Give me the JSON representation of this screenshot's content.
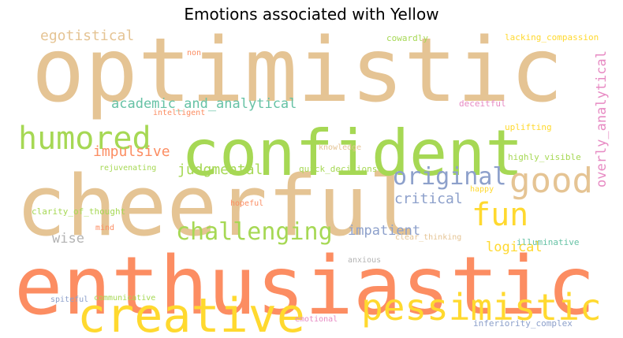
{
  "chart_data": {
    "type": "wordcloud",
    "title": "Emotions associated with Yellow",
    "palette": {
      "tan": "#e5c494",
      "green": "#a6d854",
      "orange": "#fc8d62",
      "yellow": "#ffd92f",
      "blue": "#8da0cb",
      "teal": "#66c2a5",
      "pink": "#e78ac3",
      "gray": "#b3b3b3"
    },
    "words": [
      {
        "text": "optimistic",
        "color": "#e5c494"
      },
      {
        "text": "cheerful",
        "color": "#e5c494"
      },
      {
        "text": "enthusiastic",
        "color": "#fc8d62"
      },
      {
        "text": "confident",
        "color": "#a6d854"
      },
      {
        "text": "creative",
        "color": "#ffd92f"
      },
      {
        "text": "pessimistic",
        "color": "#ffd92f"
      },
      {
        "text": "humored",
        "color": "#a6d854"
      },
      {
        "text": "good",
        "color": "#e5c494"
      },
      {
        "text": "original",
        "color": "#8da0cb"
      },
      {
        "text": "fun",
        "color": "#ffd92f"
      },
      {
        "text": "challenging",
        "color": "#a6d854"
      },
      {
        "text": "academic_and_analytical",
        "color": "#66c2a5"
      },
      {
        "text": "egotistical",
        "color": "#e5c494"
      },
      {
        "text": "overly_analytical",
        "color": "#e78ac3"
      },
      {
        "text": "impulsive",
        "color": "#fc8d62"
      },
      {
        "text": "judgmental",
        "color": "#a6d854"
      },
      {
        "text": "critical",
        "color": "#8da0cb"
      },
      {
        "text": "impatient",
        "color": "#8da0cb"
      },
      {
        "text": "logical",
        "color": "#ffd92f"
      },
      {
        "text": "wise",
        "color": "#b3b3b3"
      },
      {
        "text": "cowardly",
        "color": "#a6d854"
      },
      {
        "text": "lacking_compassion",
        "color": "#ffd92f"
      },
      {
        "text": "non",
        "color": "#fc8d62"
      },
      {
        "text": "intelligent",
        "color": "#fc8d62"
      },
      {
        "text": "deceitful",
        "color": "#e78ac3"
      },
      {
        "text": "uplifting",
        "color": "#ffd92f"
      },
      {
        "text": "rejuvenating",
        "color": "#a6d854"
      },
      {
        "text": "knowledge",
        "color": "#e5c494"
      },
      {
        "text": "highly_visible",
        "color": "#a6d854"
      },
      {
        "text": "quick_decisions",
        "color": "#a6d854"
      },
      {
        "text": "happy",
        "color": "#ffd92f"
      },
      {
        "text": "hopeful",
        "color": "#fc8d62"
      },
      {
        "text": "clarity_of_thought",
        "color": "#a6d854"
      },
      {
        "text": "mind",
        "color": "#fc8d62"
      },
      {
        "text": "clear_thinking",
        "color": "#e5c494"
      },
      {
        "text": "illuminative",
        "color": "#66c2a5"
      },
      {
        "text": "anxious",
        "color": "#b3b3b3"
      },
      {
        "text": "spiteful",
        "color": "#8da0cb"
      },
      {
        "text": "communicative",
        "color": "#a6d854"
      },
      {
        "text": "emotional",
        "color": "#e78ac3"
      },
      {
        "text": "inferiority_complex",
        "color": "#8da0cb"
      }
    ]
  }
}
